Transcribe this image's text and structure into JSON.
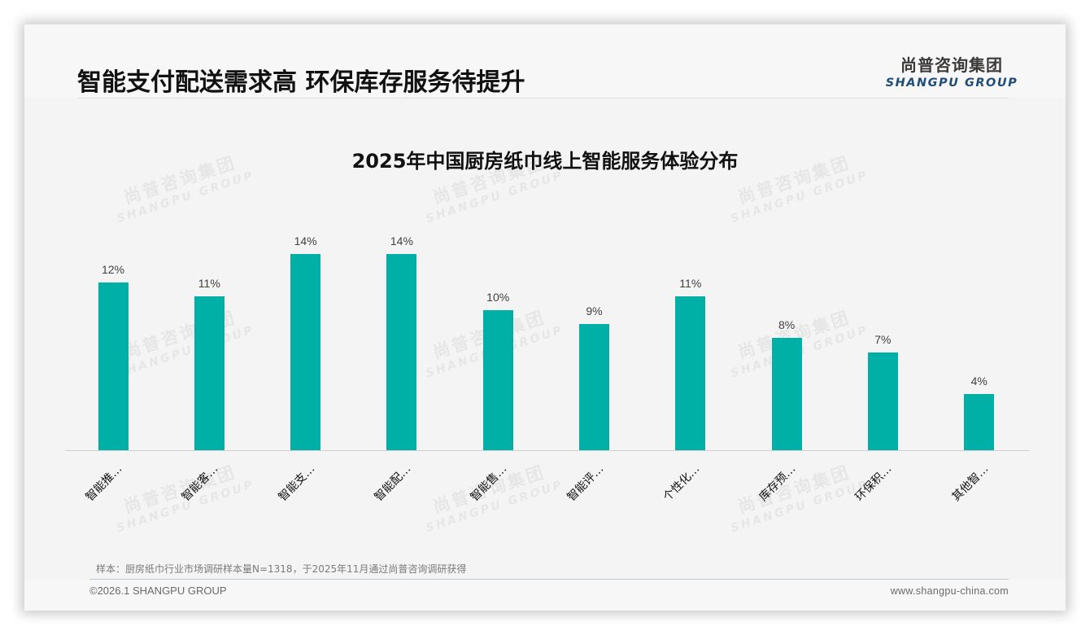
{
  "header": {
    "title": "智能支付配送需求高 环保库存服务待提升",
    "logo_cn": "尚普咨询集团",
    "logo_en": "SHANGPU GROUP"
  },
  "watermark": {
    "cn": "尚普咨询集团",
    "en": "SHANGPU GROUP"
  },
  "colors": {
    "bar": "#00b0a6",
    "logo_en": "#1f4e79"
  },
  "chart_data": {
    "type": "bar",
    "title": "2025年中国厨房纸巾线上智能服务体验分布",
    "xlabel": "",
    "ylabel": "",
    "categories": [
      "智能推…",
      "智能客…",
      "智能支…",
      "智能配…",
      "智能售…",
      "智能评…",
      "个性化…",
      "库存预…",
      "环保积…",
      "其他智…"
    ],
    "values": [
      12,
      11,
      14,
      14,
      10,
      9,
      11,
      8,
      7,
      4
    ],
    "value_labels": [
      "12%",
      "11%",
      "14%",
      "14%",
      "10%",
      "9%",
      "11%",
      "8%",
      "7%",
      "4%"
    ],
    "unit": "%",
    "ylim": [
      0,
      15
    ],
    "grid": false,
    "legend": "none"
  },
  "footer": {
    "note": "样本：厨房纸巾行业市场调研样本量N=1318，于2025年11月通过尚普咨询调研获得",
    "copyright": "©2026.1 SHANGPU GROUP",
    "website": "www.shangpu-china.com"
  }
}
